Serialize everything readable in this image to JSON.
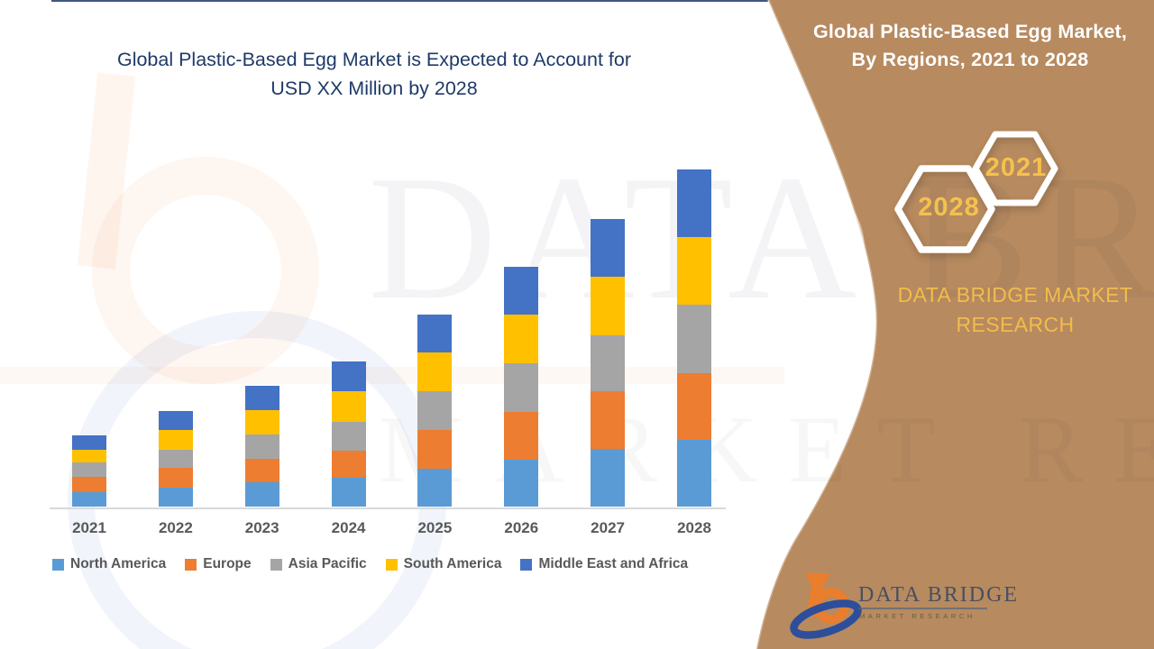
{
  "chart": {
    "title_line1": "Global Plastic-Based Egg Market is Expected to Account for",
    "title_line2": "USD XX Million by 2028",
    "title_color": "#1f3a68"
  },
  "chart_data": {
    "type": "bar",
    "stacked": true,
    "title": "Global Plastic-Based Egg Market is Expected to Account for USD XX Million by 2028",
    "xlabel": "",
    "ylabel": "",
    "units": "USD XX Million (axis values not disclosed; series values are relative estimates read from bar heights)",
    "grid": false,
    "y_axis_visible": false,
    "legend_position": "bottom",
    "categories": [
      "2021",
      "2022",
      "2023",
      "2024",
      "2025",
      "2026",
      "2027",
      "2028"
    ],
    "series": [
      {
        "name": "North America",
        "color": "#5B9BD5",
        "values": [
          16,
          21,
          27,
          32,
          42,
          52,
          64,
          74
        ]
      },
      {
        "name": "Europe",
        "color": "#ED7D31",
        "values": [
          17,
          22,
          26,
          30,
          43,
          53,
          64,
          74
        ]
      },
      {
        "name": "Asia Pacific",
        "color": "#A5A5A5",
        "values": [
          16,
          20,
          27,
          32,
          43,
          54,
          62,
          76
        ]
      },
      {
        "name": "South America",
        "color": "#FFC000",
        "values": [
          14,
          22,
          27,
          34,
          43,
          54,
          65,
          75
        ]
      },
      {
        "name": "Middle East and Africa",
        "color": "#4472C4",
        "values": [
          16,
          21,
          27,
          33,
          42,
          53,
          64,
          75
        ]
      }
    ]
  },
  "panel": {
    "bg_color": "#B78A5F",
    "title_line1": "Global Plastic-Based Egg Market,",
    "title_line2": "By Regions, 2021 to 2028",
    "hexagon_small_label": "2021",
    "hexagon_large_label": "2028",
    "brand_line1": "DATA BRIDGE MARKET",
    "brand_line2": "RESEARCH",
    "gold_color": "#F2BC4B"
  },
  "logo": {
    "name": "DATA BRIDGE",
    "sub": "MARKET RESEARCH"
  },
  "watermark": {
    "row1": "DATA BRIDGE",
    "row2": "MARKET RESEARCH"
  }
}
